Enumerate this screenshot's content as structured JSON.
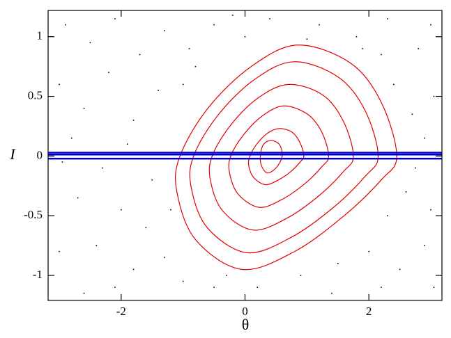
{
  "chart_data": {
    "type": "phase",
    "x_label": "θ",
    "y_label": "I",
    "xlim": [
      -3.18,
      3.18
    ],
    "ylim": [
      -1.21,
      1.22
    ],
    "xticks": [
      -2,
      0,
      2
    ],
    "yticks": [
      -1,
      -0.5,
      0,
      0.5,
      1
    ],
    "curve_color": "#e00000",
    "curves": [
      {
        "x": [
          0.6,
          0.55,
          0.4,
          0.28,
          0.25,
          0.35,
          0.5
        ],
        "y": [
          0,
          0.1,
          0.13,
          0.08,
          -0.05,
          -0.14,
          -0.1
        ]
      },
      {
        "x": [
          0.95,
          0.89,
          0.76,
          0.55,
          0.36,
          0.19,
          0.08,
          0.06,
          0.14,
          0.33,
          0.54,
          0.74,
          0.89
        ],
        "y": [
          0,
          0.11,
          0.2,
          0.23,
          0.19,
          0.1,
          0,
          -0.08,
          -0.18,
          -0.24,
          -0.2,
          -0.13,
          -0.05
        ]
      },
      {
        "x": [
          1.35,
          1.24,
          1.01,
          0.63,
          0.29,
          -0.02,
          -0.23,
          -0.25,
          -0.11,
          0.23,
          0.61,
          0.97,
          1.24
        ],
        "y": [
          0,
          0.2,
          0.35,
          0.42,
          0.34,
          0.18,
          0,
          -0.14,
          -0.32,
          -0.43,
          -0.36,
          -0.23,
          -0.09
        ]
      },
      {
        "x": [
          1.75,
          1.59,
          1.26,
          0.71,
          0.22,
          -0.23,
          -0.53,
          -0.56,
          -0.36,
          0.13,
          0.68,
          1.2,
          1.59
        ],
        "y": [
          0,
          0.29,
          0.51,
          0.6,
          0.49,
          0.26,
          0,
          -0.2,
          -0.46,
          -0.62,
          -0.52,
          -0.33,
          -0.13
        ]
      },
      {
        "x": [
          2.15,
          1.94,
          1.51,
          0.79,
          0.15,
          -0.44,
          -0.83,
          -0.87,
          -0.61,
          0.03,
          0.75,
          1.43,
          1.94
        ],
        "y": [
          0,
          0.38,
          0.66,
          0.79,
          0.64,
          0.34,
          0,
          -0.26,
          -0.6,
          -0.81,
          -0.68,
          -0.43,
          -0.17
        ]
      },
      {
        "x": [
          2.45,
          2.2,
          1.7,
          0.85,
          0.1,
          -0.6,
          -1.05,
          -1.1,
          -0.8,
          -0.05,
          0.8,
          1.6,
          2.2
        ],
        "y": [
          0,
          0.45,
          0.78,
          0.93,
          0.75,
          0.4,
          0,
          -0.3,
          -0.7,
          -0.95,
          -0.8,
          -0.5,
          -0.2
        ]
      }
    ],
    "line_color": "#0000cc",
    "hlines": [
      0.028,
      0.012,
      -0.022
    ],
    "dot_color": "#000000",
    "scatter": {
      "x": [
        -2.9,
        -2.5,
        -2.1,
        -1.7,
        -1.3,
        -0.9,
        -0.5,
        0.0,
        0.4,
        1.2,
        1.8,
        2.3,
        2.8,
        3.0,
        -3.0,
        -2.6,
        -2.2,
        -1.8,
        -1.4,
        -1.0,
        -0.8,
        2.4,
        2.7,
        3.05,
        2.9,
        -2.8,
        -2.3,
        -1.9,
        -1.5,
        -2.7,
        -2.0,
        -1.6,
        -1.2,
        2.75,
        2.6,
        3.0,
        2.3,
        -3.0,
        -2.4,
        -1.8,
        -1.3,
        -1.0,
        -0.5,
        0.2,
        0.9,
        1.5,
        2.0,
        2.5,
        2.9,
        -2.6,
        -2.1,
        1.4,
        2.2,
        3.05,
        -0.2,
        1.0,
        -0.3,
        -2.95,
        1.9,
        2.2
      ],
      "y": [
        1.1,
        0.95,
        1.15,
        0.85,
        1.05,
        0.9,
        1.1,
        1.0,
        1.15,
        1.1,
        1.0,
        1.15,
        0.9,
        1.1,
        0.6,
        0.4,
        0.7,
        0.3,
        0.55,
        0.6,
        0.75,
        0.6,
        0.35,
        0.5,
        0.15,
        0.15,
        -0.1,
        0.1,
        -0.2,
        -0.35,
        -0.45,
        -0.6,
        -0.45,
        -0.1,
        -0.3,
        -0.45,
        -0.5,
        -0.8,
        -0.75,
        -0.95,
        -0.85,
        -1.05,
        -1.1,
        -1.1,
        -1.0,
        -0.9,
        -0.8,
        -0.95,
        -0.75,
        -1.15,
        -1.1,
        -1.15,
        -1.1,
        -1.1,
        1.18,
        0.98,
        -1.0,
        -0.05,
        0.9,
        0.85
      ]
    }
  }
}
